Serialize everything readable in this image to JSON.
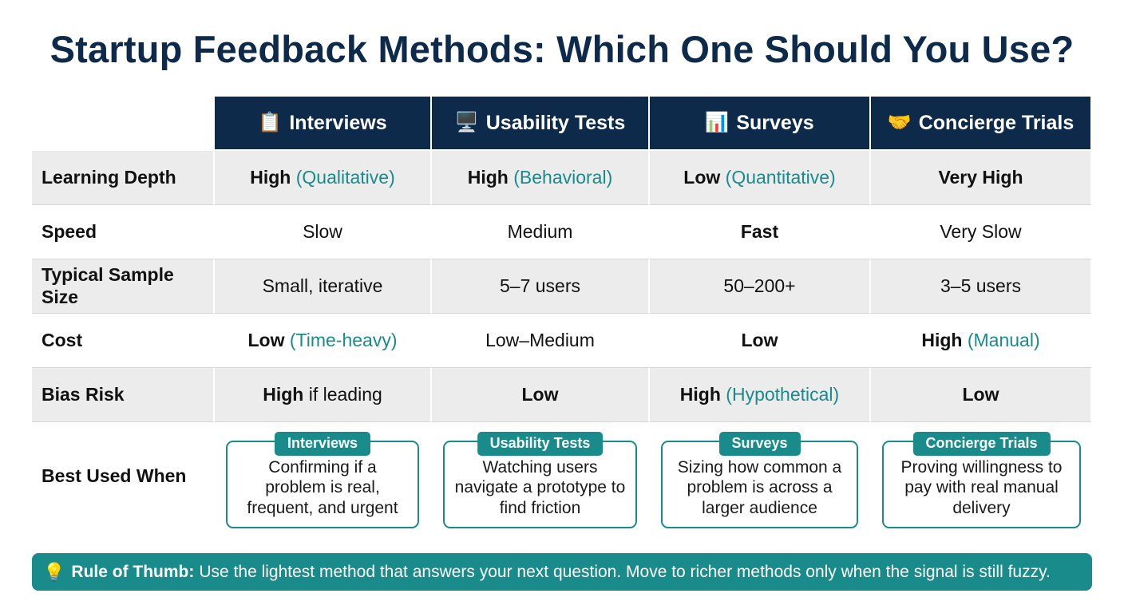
{
  "title": "Startup Feedback Methods: Which One Should You Use?",
  "columns": [
    {
      "icon": "clipboard-icon",
      "glyph": "📋",
      "label": "Interviews"
    },
    {
      "icon": "computer-icon",
      "glyph": "🖥️",
      "label": "Usability Tests"
    },
    {
      "icon": "bar-chart-icon",
      "glyph": "📊",
      "label": "Surveys"
    },
    {
      "icon": "handshake-icon",
      "glyph": "🤝",
      "label": "Concierge Trials"
    }
  ],
  "rows": [
    {
      "label": "Learning Depth",
      "cells": [
        {
          "main": "High",
          "note": "(Qualitative)"
        },
        {
          "main": "High",
          "note": "(Behavioral)"
        },
        {
          "main": "Low",
          "note": "(Quantitative)"
        },
        {
          "main": "Very High",
          "note": ""
        }
      ]
    },
    {
      "label": "Speed",
      "cells": [
        {
          "plain": "Slow"
        },
        {
          "plain": "Medium"
        },
        {
          "main": "Fast",
          "note": ""
        },
        {
          "plain": "Very Slow"
        }
      ]
    },
    {
      "label": "Typical Sample Size",
      "cells": [
        {
          "plain": "Small, iterative"
        },
        {
          "plain": "5–7 users"
        },
        {
          "plain": "50–200+"
        },
        {
          "plain": "3–5 users"
        }
      ]
    },
    {
      "label": "Cost",
      "cells": [
        {
          "main": "Low",
          "note": "(Time-heavy)"
        },
        {
          "plain": "Low–Medium"
        },
        {
          "main": "Low",
          "note": ""
        },
        {
          "main": "High",
          "note": "(Manual)"
        }
      ]
    },
    {
      "label": "Bias Risk",
      "cells": [
        {
          "main": "High",
          "rest": "if leading"
        },
        {
          "main": "Low",
          "note": ""
        },
        {
          "main": "High",
          "note": "(Hypothetical)"
        },
        {
          "main": "Low",
          "note": ""
        }
      ]
    }
  ],
  "best_used": {
    "label": "Best Used When",
    "cards": [
      {
        "tag": "Interviews",
        "text": "Confirming if a problem is real, frequent, and urgent"
      },
      {
        "tag": "Usability Tests",
        "text": "Watching users navigate a prototype to find friction"
      },
      {
        "tag": "Surveys",
        "text": "Sizing how common a problem is across a larger audience"
      },
      {
        "tag": "Concierge Trials",
        "text": "Proving willingness to pay with real manual delivery"
      }
    ]
  },
  "banner": {
    "icon": "lightbulb-icon",
    "glyph": "💡",
    "lead": "Rule of Thumb:",
    "text": "Use the lightest method that answers your next question. Move to richer methods only when the signal is still fuzzy."
  },
  "colors": {
    "navy": "#0e2a4a",
    "teal": "#1a8b8b",
    "row_shade": "#ececec"
  }
}
